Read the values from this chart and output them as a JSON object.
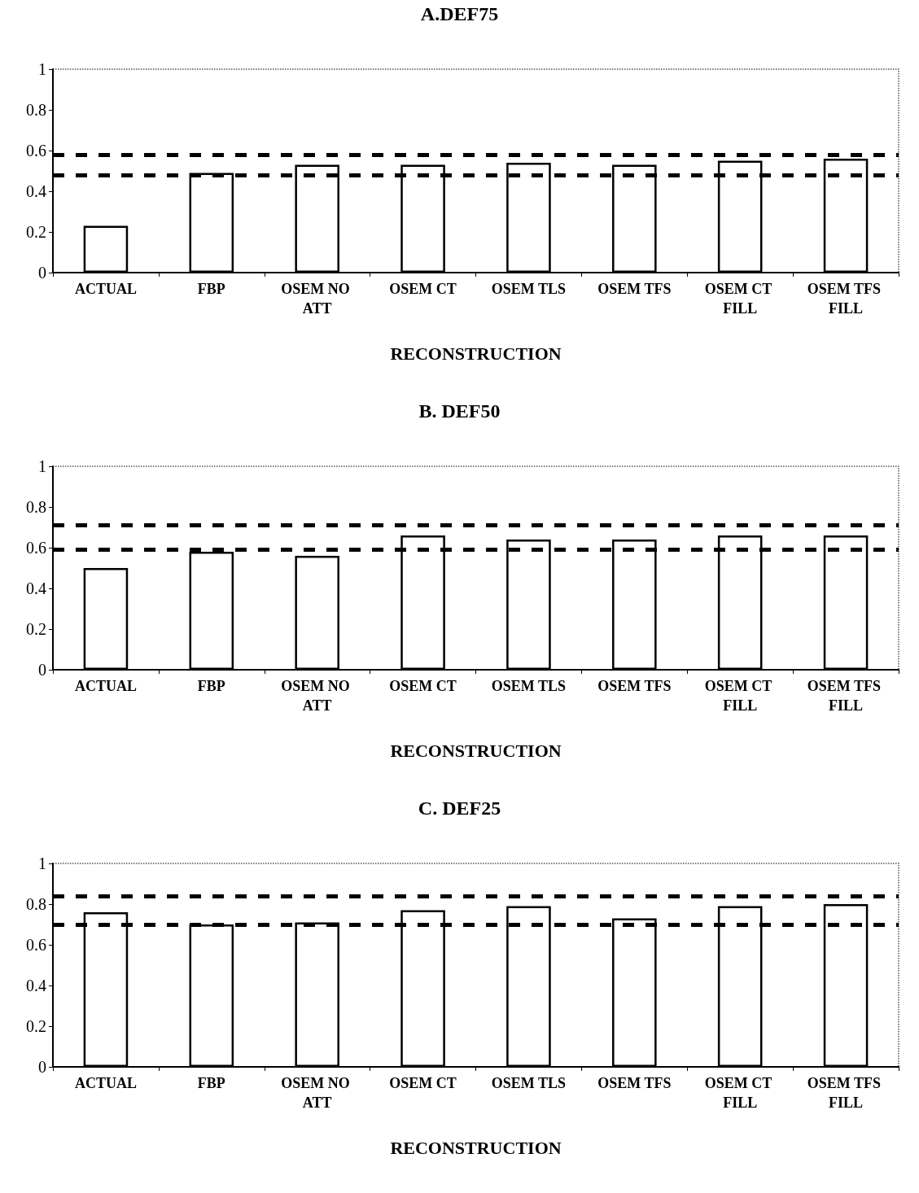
{
  "chart_data": [
    {
      "type": "bar",
      "title": "A.DEF75",
      "xlabel": "RECONSTRUCTION",
      "categories": [
        "ACTUAL",
        "FBP",
        "OSEM NO ATT",
        "OSEM CT",
        "OSEM TLS",
        "OSEM TFS",
        "OSEM CT FILL",
        "OSEM TFS FILL"
      ],
      "values": [
        0.23,
        0.49,
        0.53,
        0.53,
        0.54,
        0.53,
        0.55,
        0.56
      ],
      "color": "#ffffff",
      "ylim": [
        0,
        1
      ],
      "yticks": [
        0,
        0.2,
        0.4,
        0.6,
        0.8,
        1
      ],
      "grid": false,
      "ref_lines": [
        {
          "axis": "y",
          "value": 0.58,
          "color": "#000000",
          "line_style": "dashed"
        },
        {
          "axis": "y",
          "value": 0.48,
          "color": "#000000",
          "line_style": "dashed"
        }
      ]
    },
    {
      "type": "bar",
      "title": "B. DEF50",
      "xlabel": "RECONSTRUCTION",
      "categories": [
        "ACTUAL",
        "FBP",
        "OSEM NO ATT",
        "OSEM CT",
        "OSEM TLS",
        "OSEM TFS",
        "OSEM CT FILL",
        "OSEM TFS FILL"
      ],
      "values": [
        0.5,
        0.58,
        0.56,
        0.66,
        0.64,
        0.64,
        0.66,
        0.66
      ],
      "color": "#ffffff",
      "ylim": [
        0,
        1
      ],
      "yticks": [
        0,
        0.2,
        0.4,
        0.6,
        0.8,
        1
      ],
      "grid": false,
      "ref_lines": [
        {
          "axis": "y",
          "value": 0.71,
          "color": "#000000",
          "line_style": "dashed"
        },
        {
          "axis": "y",
          "value": 0.59,
          "color": "#000000",
          "line_style": "dashed"
        }
      ]
    },
    {
      "type": "bar",
      "title": "C. DEF25",
      "xlabel": "RECONSTRUCTION",
      "categories": [
        "ACTUAL",
        "FBP",
        "OSEM NO ATT",
        "OSEM CT",
        "OSEM TLS",
        "OSEM TFS",
        "OSEM CT FILL",
        "OSEM TFS FILL"
      ],
      "values": [
        0.76,
        0.7,
        0.71,
        0.77,
        0.79,
        0.73,
        0.79,
        0.8
      ],
      "color": "#ffffff",
      "ylim": [
        0,
        1
      ],
      "yticks": [
        0,
        0.2,
        0.4,
        0.6,
        0.8,
        1
      ],
      "grid": false,
      "ref_lines": [
        {
          "axis": "y",
          "value": 0.84,
          "color": "#000000",
          "line_style": "dashed"
        },
        {
          "axis": "y",
          "value": 0.7,
          "color": "#000000",
          "line_style": "dashed"
        }
      ]
    }
  ]
}
